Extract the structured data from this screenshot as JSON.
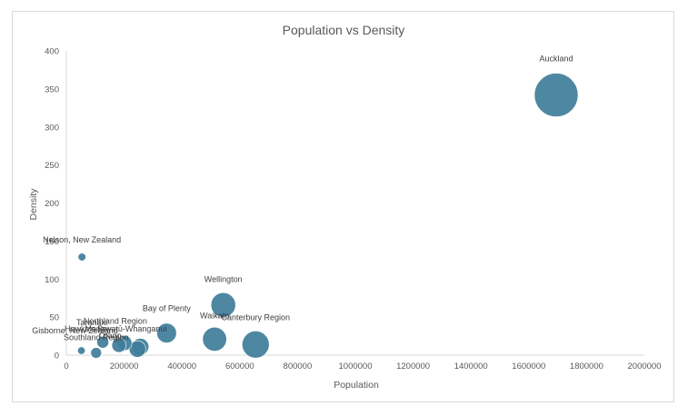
{
  "chart_data": {
    "type": "scatter",
    "title": "Population vs Density",
    "xlabel": "Population",
    "ylabel": "Density",
    "xlim": [
      0,
      2000000
    ],
    "ylim": [
      0,
      400
    ],
    "xticks": [
      "0",
      "200000",
      "400000",
      "600000",
      "800000",
      "1000000",
      "1200000",
      "1400000",
      "1600000",
      "1800000",
      "2000000"
    ],
    "yticks": [
      "0",
      "50",
      "100",
      "150",
      "200",
      "250",
      "300",
      "350",
      "400"
    ],
    "grid": false,
    "legend": "none",
    "color": "#3f7d9a",
    "points": [
      {
        "label": "Auckland",
        "x": 1695000,
        "y": 342,
        "size": 1695000
      },
      {
        "label": "Nelson, New Zealand",
        "x": 54000,
        "y": 129,
        "size": 54000
      },
      {
        "label": "Wellington",
        "x": 543000,
        "y": 66,
        "size": 543000
      },
      {
        "label": "Bay of Plenty",
        "x": 347000,
        "y": 29,
        "size": 347000
      },
      {
        "label": "Waikato",
        "x": 513000,
        "y": 21,
        "size": 513000
      },
      {
        "label": "Canterbury Region",
        "x": 655000,
        "y": 14,
        "size": 655000
      },
      {
        "label": "Manawatū-Whanganui",
        "x": 256000,
        "y": 11,
        "size": 256000
      },
      {
        "label": "Otago",
        "x": 246000,
        "y": 8,
        "size": 246000
      },
      {
        "label": "Hawke's Bay",
        "x": 182000,
        "y": 13,
        "size": 182000
      },
      {
        "label": "Northland Region",
        "x": 201000,
        "y": 16,
        "size": 201000
      },
      {
        "label": "Taranaki",
        "x": 126000,
        "y": 17,
        "size": 126000
      },
      {
        "label": "Gisborne, New Zealand",
        "x": 52000,
        "y": 6,
        "size": 52000
      },
      {
        "label": "Southland Region",
        "x": 103000,
        "y": 3,
        "size": 103000
      }
    ]
  }
}
